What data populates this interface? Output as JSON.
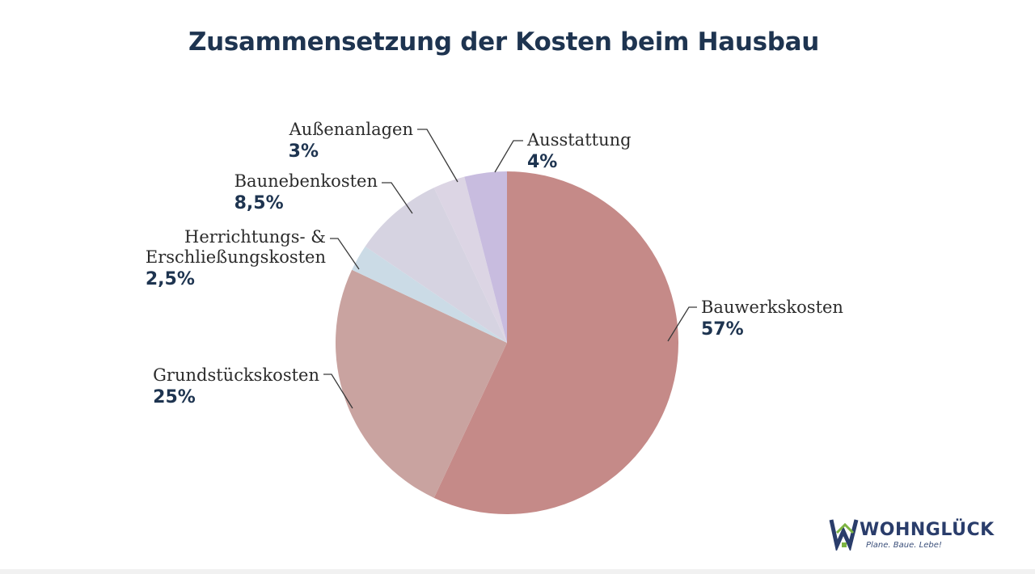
{
  "chart_data": {
    "type": "pie",
    "title": "Zusammensetzung der Kosten beim Hausbau",
    "slices": [
      {
        "label": "Bauwerkskosten",
        "value": 57,
        "display": "57%",
        "color": "#c58a88"
      },
      {
        "label": "Grundstückskosten",
        "value": 25,
        "display": "25%",
        "color": "#c9a3a0"
      },
      {
        "label": "Herrichtungs- &\nErschließungskosten",
        "value": 2.5,
        "display": "2,5%",
        "color": "#cbdbe6"
      },
      {
        "label": "Baunebenkosten",
        "value": 8.5,
        "display": "8,5%",
        "color": "#d6d3e1"
      },
      {
        "label": "Außenanlagen",
        "value": 3,
        "display": "3%",
        "color": "#dcd5e4"
      },
      {
        "label": "Ausstattung",
        "value": 4,
        "display": "4%",
        "color": "#c8bcdf"
      }
    ],
    "start": "top",
    "direction": "clockwise",
    "legend": "none"
  },
  "logo": {
    "name": "WOHNGLÜCK",
    "tagline": "Plane. Baue. Lebe!",
    "colors": {
      "blue": "#2a3d6b",
      "green": "#7cb342"
    }
  }
}
